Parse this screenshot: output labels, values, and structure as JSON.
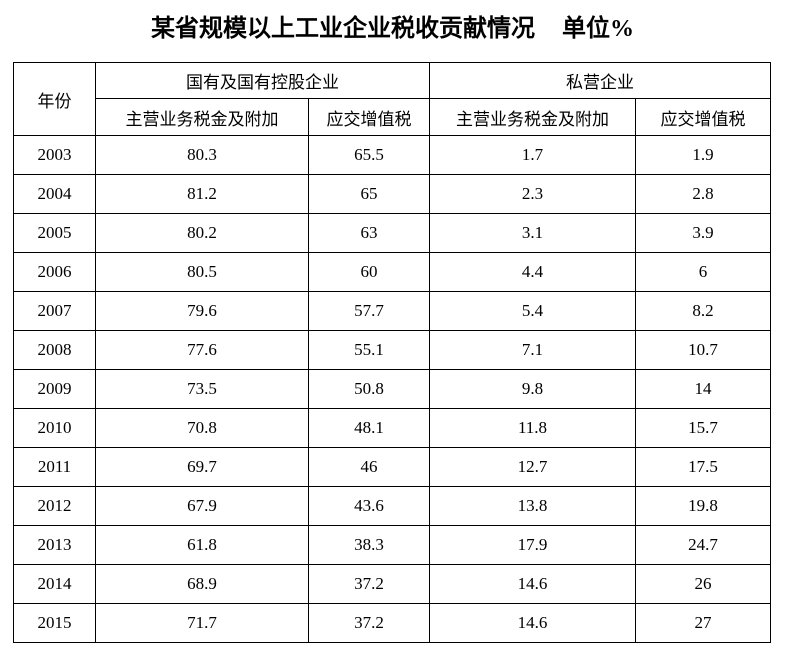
{
  "page_title": {
    "text": "某省规模以上工业企业税收贡献情况",
    "unit": "单位%"
  },
  "colors": {
    "background": "#ffffff",
    "border": "#000000",
    "text": "#000000"
  },
  "chart_data": {
    "type": "table",
    "title": "某省规模以上工业企业税收贡献情况",
    "unit_label": "单位%",
    "header": {
      "year": "年份",
      "groups": [
        {
          "label": "国有及国有控股企业",
          "subcolumns": [
            "主营业务税金及附加",
            "应交增值税"
          ]
        },
        {
          "label": "私营企业",
          "subcolumns": [
            "主营业务税金及附加",
            "应交增值税"
          ]
        }
      ]
    },
    "rows": [
      [
        "2003",
        "80.3",
        "65.5",
        "1.7",
        "1.9"
      ],
      [
        "2004",
        "81.2",
        "65",
        "2.3",
        "2.8"
      ],
      [
        "2005",
        "80.2",
        "63",
        "3.1",
        "3.9"
      ],
      [
        "2006",
        "80.5",
        "60",
        "4.4",
        "6"
      ],
      [
        "2007",
        "79.6",
        "57.7",
        "5.4",
        "8.2"
      ],
      [
        "2008",
        "77.6",
        "55.1",
        "7.1",
        "10.7"
      ],
      [
        "2009",
        "73.5",
        "50.8",
        "9.8",
        "14"
      ],
      [
        "2010",
        "70.8",
        "48.1",
        "11.8",
        "15.7"
      ],
      [
        "2011",
        "69.7",
        "46",
        "12.7",
        "17.5"
      ],
      [
        "2012",
        "67.9",
        "43.6",
        "13.8",
        "19.8"
      ],
      [
        "2013",
        "61.8",
        "38.3",
        "17.9",
        "24.7"
      ],
      [
        "2014",
        "68.9",
        "37.2",
        "14.6",
        "26"
      ],
      [
        "2015",
        "71.7",
        "37.2",
        "14.6",
        "27"
      ]
    ]
  }
}
